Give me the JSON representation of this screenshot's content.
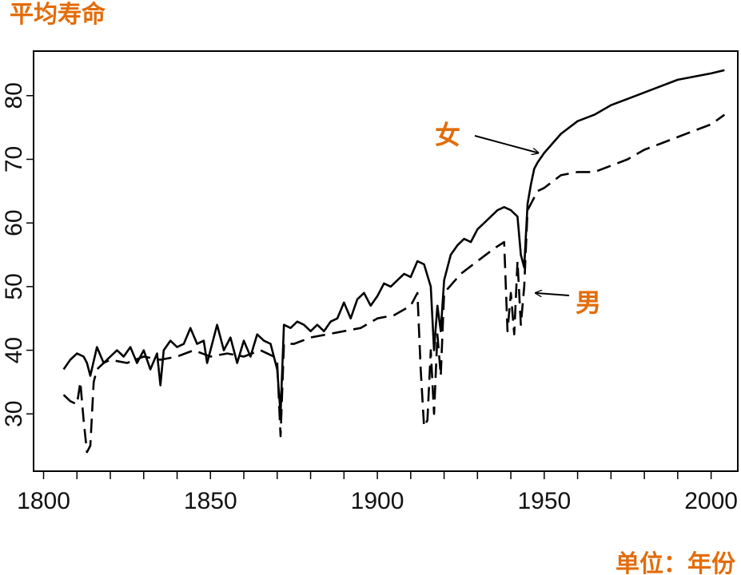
{
  "colors": {
    "accent": "#e36c0a",
    "lines": "#000000"
  },
  "chart_data": {
    "type": "line",
    "title": "平均寿命",
    "xlabel": "单位：年份",
    "ylabel": "",
    "xlim": [
      1797,
      2008
    ],
    "ylim": [
      21,
      87
    ],
    "xticks": [
      "1800",
      "1850",
      "1900",
      "1950",
      "2000"
    ],
    "yticks": [
      "30",
      "40",
      "50",
      "60",
      "70",
      "80"
    ],
    "grid": false,
    "series": [
      {
        "name": "女",
        "style": "solid",
        "x": [
          1806,
          1808,
          1810,
          1812,
          1813,
          1814,
          1816,
          1818,
          1820,
          1822,
          1824,
          1826,
          1828,
          1830,
          1832,
          1834,
          1835,
          1836,
          1838,
          1840,
          1842,
          1844,
          1846,
          1848,
          1849,
          1850,
          1852,
          1854,
          1856,
          1858,
          1860,
          1862,
          1864,
          1866,
          1868,
          1869,
          1870,
          1871,
          1872,
          1874,
          1876,
          1878,
          1880,
          1882,
          1884,
          1886,
          1888,
          1890,
          1892,
          1894,
          1896,
          1898,
          1900,
          1902,
          1904,
          1906,
          1908,
          1910,
          1912,
          1914,
          1916,
          1917,
          1918,
          1919,
          1920,
          1922,
          1924,
          1926,
          1928,
          1930,
          1932,
          1934,
          1936,
          1938,
          1940,
          1942,
          1943,
          1944,
          1945,
          1946,
          1947,
          1948,
          1950,
          1955,
          1960,
          1965,
          1970,
          1975,
          1980,
          1985,
          1990,
          1995,
          2000,
          2004
        ],
        "values": [
          37,
          38.5,
          39.5,
          39,
          38,
          36,
          40.5,
          38,
          39,
          40,
          39,
          40.5,
          38,
          40,
          37,
          39.5,
          34.5,
          40,
          41.5,
          40.5,
          41,
          43.5,
          41,
          41.5,
          38,
          40,
          44,
          40,
          42,
          38,
          41.5,
          39,
          42.5,
          41.5,
          41,
          39,
          37,
          30,
          44,
          43.5,
          44.5,
          44,
          43,
          44,
          43,
          44.5,
          45,
          47.5,
          45,
          48,
          49,
          47,
          48.5,
          50.5,
          50,
          51,
          52,
          51.5,
          54,
          53.5,
          50,
          40,
          47,
          43,
          51,
          55,
          56.5,
          57.5,
          57,
          59,
          60,
          61,
          62,
          62.5,
          62,
          61,
          55,
          53,
          63,
          66,
          68.5,
          69.5,
          71,
          74,
          76,
          77,
          78.5,
          79.5,
          80.5,
          81.5,
          82.5,
          83,
          83.5,
          84
        ]
      },
      {
        "name": "男",
        "style": "dashed",
        "x": [
          1806,
          1808,
          1810,
          1811,
          1812,
          1813,
          1814,
          1815,
          1816,
          1818,
          1820,
          1825,
          1830,
          1835,
          1840,
          1845,
          1850,
          1855,
          1860,
          1865,
          1869,
          1870,
          1871,
          1872,
          1875,
          1880,
          1885,
          1890,
          1895,
          1900,
          1905,
          1910,
          1912,
          1913,
          1914,
          1915,
          1916,
          1917,
          1918,
          1919,
          1920,
          1925,
          1930,
          1935,
          1938,
          1939,
          1940,
          1941,
          1942,
          1943,
          1944,
          1945,
          1948,
          1950,
          1955,
          1960,
          1965,
          1970,
          1975,
          1980,
          1985,
          1990,
          1995,
          2000,
          2004
        ],
        "values": [
          33,
          32,
          31.5,
          35,
          29,
          24,
          25,
          35,
          37,
          38,
          38.5,
          38,
          39,
          38.5,
          39,
          40,
          39,
          39.5,
          39,
          40,
          39,
          38,
          26.5,
          41,
          41,
          42,
          42.5,
          43,
          43.5,
          45,
          45.5,
          47,
          49,
          37,
          28,
          29,
          40,
          30,
          42.5,
          36,
          49,
          52,
          54,
          56,
          57,
          43,
          49,
          42.5,
          54,
          44,
          50,
          62,
          65,
          65.5,
          67.5,
          68,
          68,
          69,
          70,
          71.5,
          72.5,
          73.5,
          74.5,
          75.5,
          77
        ]
      }
    ],
    "annotations": [
      {
        "text": "女",
        "target_x": 1948,
        "target_y": 71
      },
      {
        "text": "男",
        "target_x": 1945,
        "target_y": 49
      }
    ]
  }
}
